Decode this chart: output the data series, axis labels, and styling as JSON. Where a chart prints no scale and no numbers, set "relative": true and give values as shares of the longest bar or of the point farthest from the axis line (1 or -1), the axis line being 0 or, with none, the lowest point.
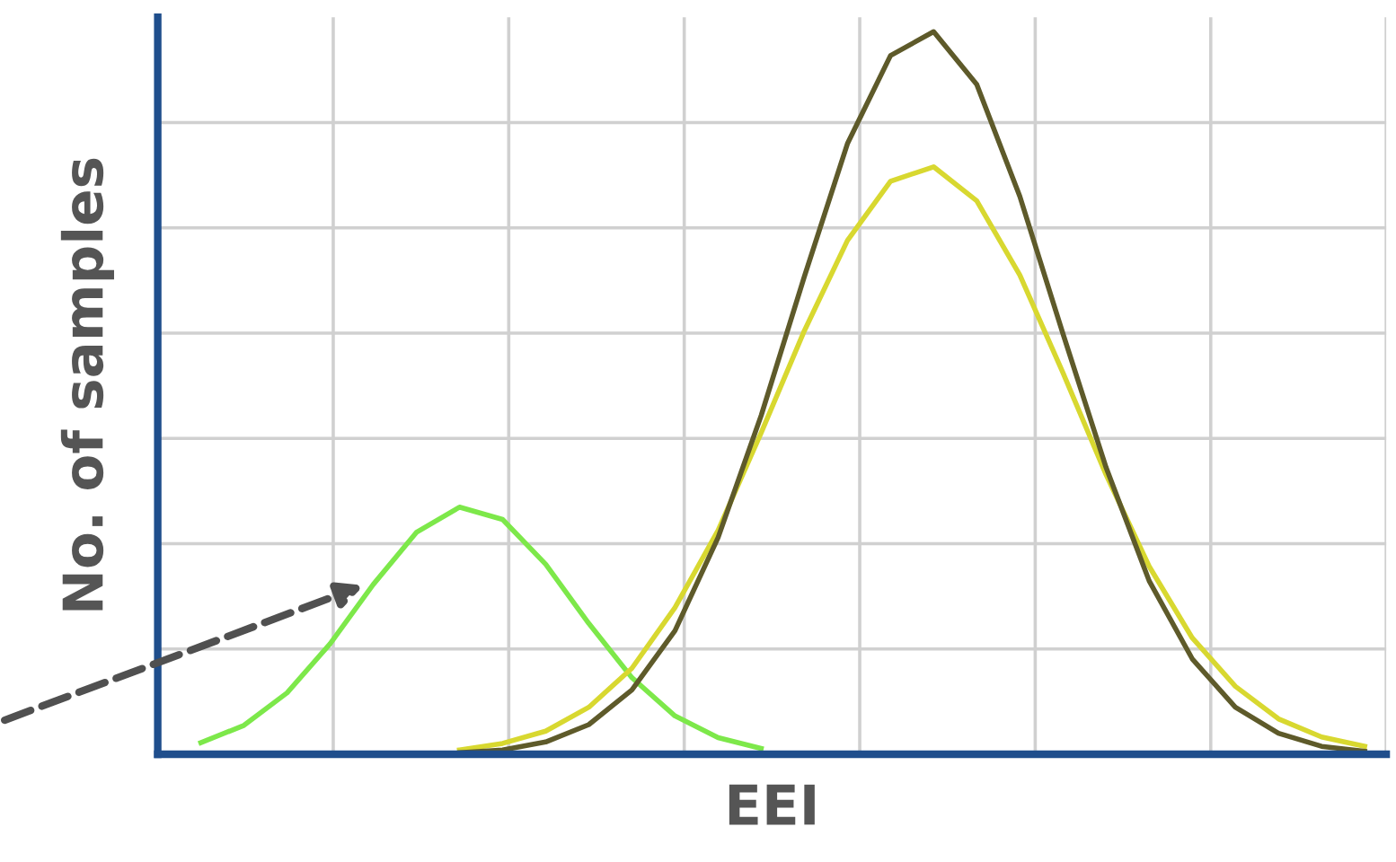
{
  "chart_data": {
    "type": "line",
    "relative": true,
    "xlabel": "EEI",
    "ylabel": "No. of samples",
    "grid": true,
    "legend": false,
    "marker": "none",
    "line_style": "solid",
    "categories": [
      null,
      null,
      null,
      null,
      null,
      null,
      null,
      null,
      null,
      null,
      null,
      null,
      null,
      null,
      null,
      null,
      null,
      null,
      null,
      null,
      null,
      null,
      null,
      null,
      null,
      null,
      null,
      null,
      null
    ],
    "series": [
      {
        "color": "#7de84a",
        "values": [
          null,
          0.016,
          0.04,
          0.085,
          0.153,
          0.235,
          0.307,
          0.342,
          0.325,
          0.263,
          0.181,
          0.106,
          0.053,
          0.023,
          0.008,
          null,
          null,
          null,
          null,
          null,
          null,
          null,
          null,
          null,
          null,
          null,
          null,
          null,
          null
        ]
      },
      {
        "color": "#d8d830",
        "values": [
          null,
          null,
          null,
          null,
          null,
          null,
          null,
          0.006,
          0.015,
          0.032,
          0.065,
          0.119,
          0.203,
          0.31,
          0.445,
          0.586,
          0.711,
          0.793,
          0.813,
          0.766,
          0.663,
          0.528,
          0.387,
          0.26,
          0.161,
          0.094,
          0.049,
          0.024,
          0.011
        ]
      },
      {
        "color": "#5e5a2a",
        "values": [
          null,
          null,
          null,
          null,
          null,
          null,
          null,
          0.002,
          0.006,
          0.017,
          0.041,
          0.089,
          0.171,
          0.3,
          0.469,
          0.661,
          0.845,
          0.967,
          1.0,
          0.927,
          0.772,
          0.582,
          0.397,
          0.24,
          0.132,
          0.065,
          0.029,
          0.011,
          0.004
        ]
      }
    ]
  }
}
